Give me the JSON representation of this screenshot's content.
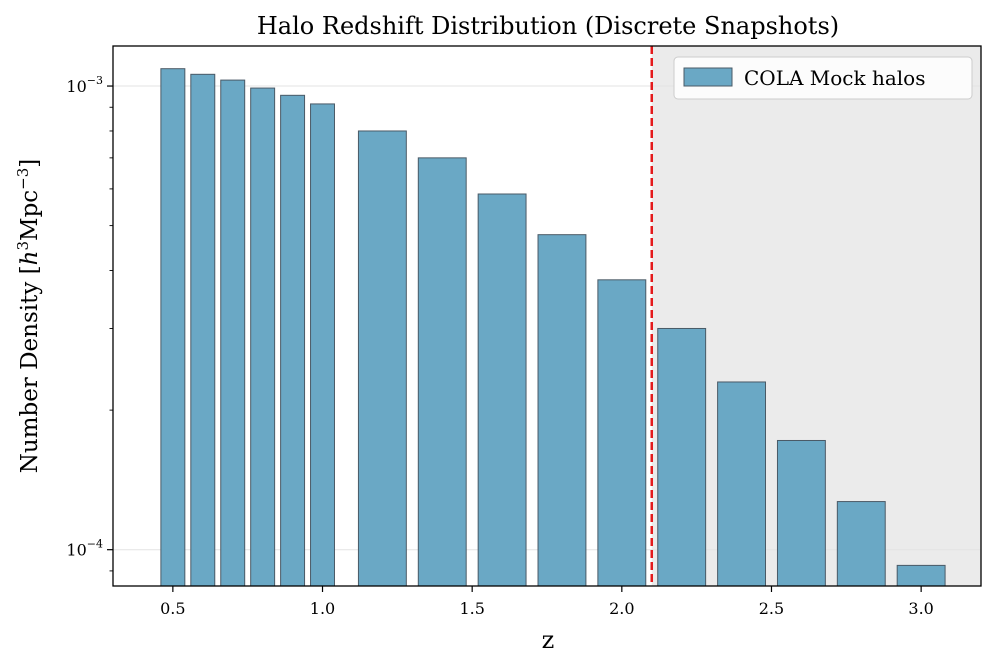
{
  "chart_data": {
    "type": "bar",
    "title": "Halo Redshift Distribution (Discrete Snapshots)",
    "xlabel": "z",
    "ylabel_main": "Number Density [",
    "ylabel_h": "h",
    "ylabel_h_exp": "3",
    "ylabel_mpc": "Mpc",
    "ylabel_mpc_exp": "−3",
    "ylabel_close": "]",
    "yscale": "log",
    "xlim": [
      0.3,
      3.2
    ],
    "ylim": [
      8.35e-05,
      0.00122
    ],
    "xticks": [
      {
        "value": 0.5,
        "label": "0.5"
      },
      {
        "value": 1.0,
        "label": "1.0"
      },
      {
        "value": 1.5,
        "label": "1.5"
      },
      {
        "value": 2.0,
        "label": "2.0"
      },
      {
        "value": 2.5,
        "label": "2.5"
      },
      {
        "value": 3.0,
        "label": "3.0"
      }
    ],
    "yticks": [
      {
        "value": 0.001,
        "base": "10",
        "exp": "−3"
      },
      {
        "value": 0.0001,
        "base": "10",
        "exp": "−4"
      }
    ],
    "bars": [
      {
        "z": 0.5,
        "width": 0.08,
        "value": 0.00109
      },
      {
        "z": 0.6,
        "width": 0.08,
        "value": 0.00106
      },
      {
        "z": 0.7,
        "width": 0.08,
        "value": 0.00103
      },
      {
        "z": 0.8,
        "width": 0.08,
        "value": 0.00099
      },
      {
        "z": 0.9,
        "width": 0.08,
        "value": 0.000955
      },
      {
        "z": 1.0,
        "width": 0.08,
        "value": 0.000915
      },
      {
        "z": 1.2,
        "width": 0.16,
        "value": 0.0008
      },
      {
        "z": 1.4,
        "width": 0.16,
        "value": 0.0007
      },
      {
        "z": 1.6,
        "width": 0.16,
        "value": 0.000585
      },
      {
        "z": 1.8,
        "width": 0.16,
        "value": 0.000478
      },
      {
        "z": 2.0,
        "width": 0.16,
        "value": 0.000382
      },
      {
        "z": 2.2,
        "width": 0.16,
        "value": 0.0003
      },
      {
        "z": 2.4,
        "width": 0.16,
        "value": 0.00023
      },
      {
        "z": 2.6,
        "width": 0.16,
        "value": 0.000172
      },
      {
        "z": 2.8,
        "width": 0.16,
        "value": 0.000127
      },
      {
        "z": 3.0,
        "width": 0.16,
        "value": 9.25e-05
      }
    ],
    "cutoff_z": 2.1,
    "shaded_region": {
      "from_z": 2.1,
      "to_z": 3.2
    },
    "series_name": "COLA Mock halos",
    "legend_position": "top-right",
    "colors": {
      "bar_fill": "#6aa8c5",
      "bar_edge": "#4a5a66",
      "cutoff_line": "#e41a1c",
      "shade": "#ebebeb",
      "grid": "#e3e3e3"
    }
  }
}
